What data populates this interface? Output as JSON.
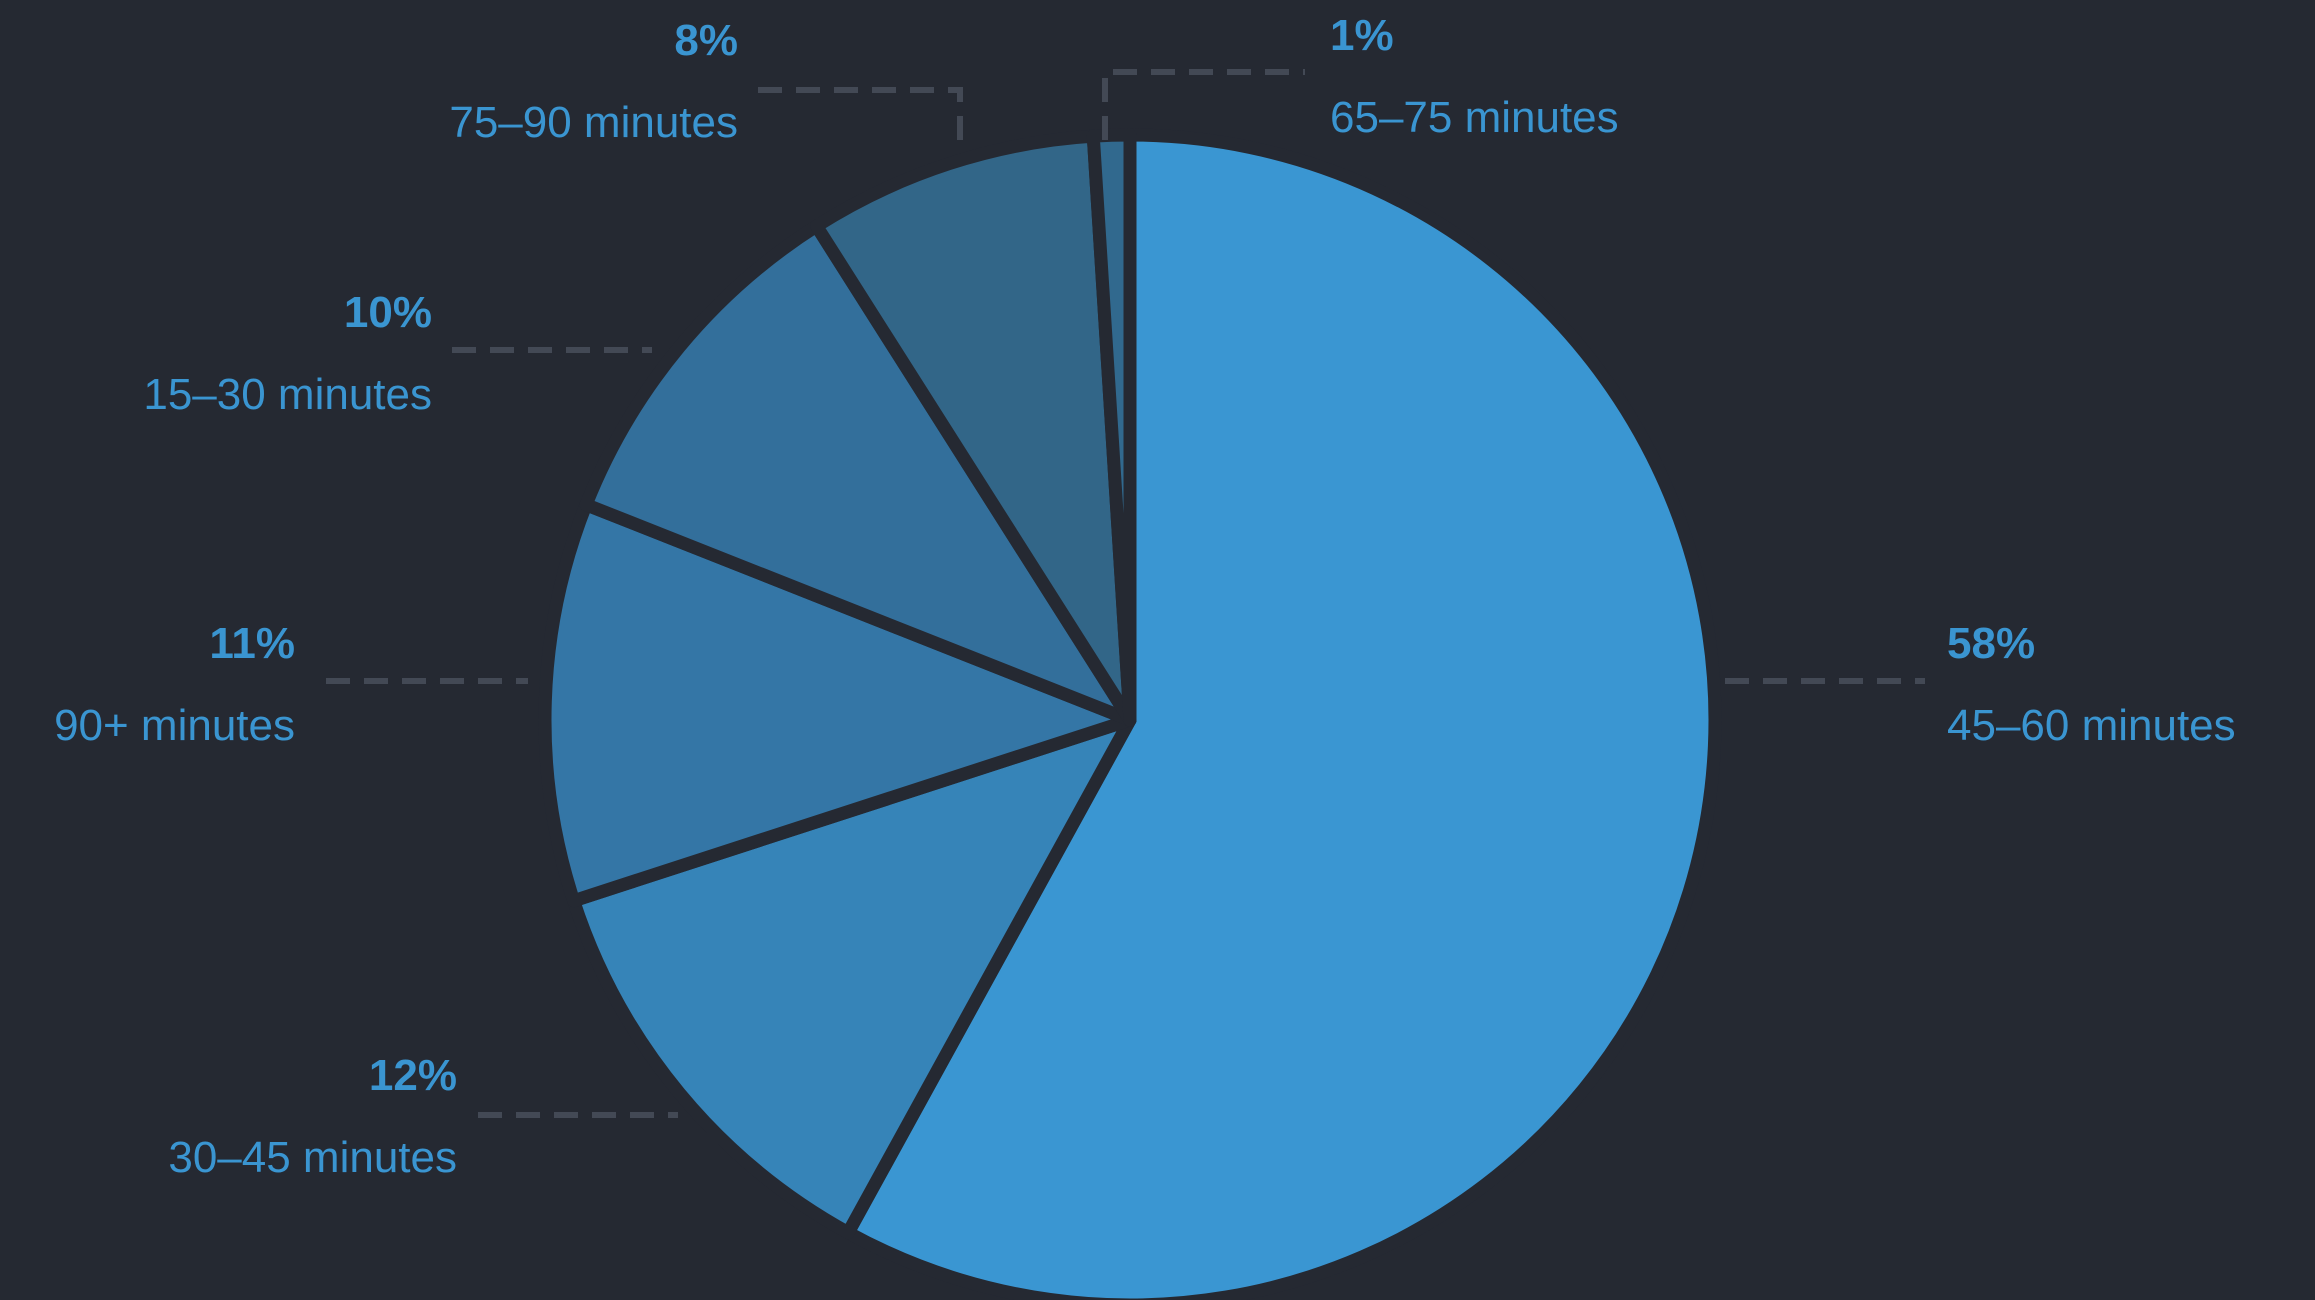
{
  "colors": {
    "background": "#252932",
    "label": "#3a95d1",
    "leader": "#434955",
    "slices": [
      "#3a96d2",
      "#3684b8",
      "#3476a6",
      "#336f9b",
      "#326688",
      "#31698e"
    ]
  },
  "chart_data": {
    "type": "pie",
    "start_angle_deg": 0,
    "direction": "clockwise",
    "slices": [
      {
        "label": "45–60 minutes",
        "value": 58,
        "value_label": "58%"
      },
      {
        "label": "30–45 minutes",
        "value": 12,
        "value_label": "12%"
      },
      {
        "label": "90+ minutes",
        "value": 11,
        "value_label": "11%"
      },
      {
        "label": "15–30 minutes",
        "value": 10,
        "value_label": "10%"
      },
      {
        "label": "75–90 minutes",
        "value": 8,
        "value_label": "8%"
      },
      {
        "label": "65–75 minutes",
        "value": 1,
        "value_label": "1%"
      }
    ]
  }
}
